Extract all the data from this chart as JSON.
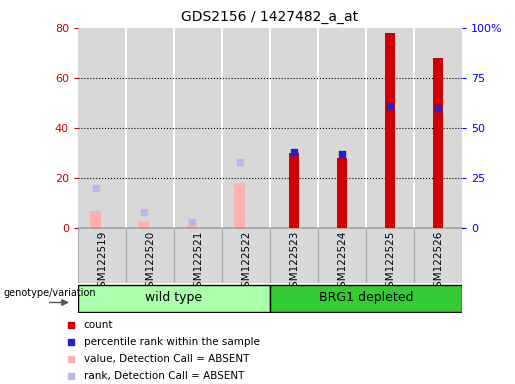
{
  "title": "GDS2156 / 1427482_a_at",
  "samples": [
    "GSM122519",
    "GSM122520",
    "GSM122521",
    "GSM122522",
    "GSM122523",
    "GSM122524",
    "GSM122525",
    "GSM122526"
  ],
  "count": [
    0,
    0,
    0,
    0,
    30,
    28,
    78,
    68
  ],
  "percentile_rank": [
    0,
    0,
    0,
    0,
    38,
    37,
    61,
    60
  ],
  "absent_value": [
    7,
    3,
    1,
    18,
    0,
    0,
    0,
    0
  ],
  "absent_rank": [
    20,
    8,
    3,
    33,
    0,
    0,
    0,
    0
  ],
  "left_ylim": [
    0,
    80
  ],
  "right_ylim": [
    0,
    100
  ],
  "left_yticks": [
    0,
    20,
    40,
    60,
    80
  ],
  "right_yticks": [
    0,
    25,
    50,
    75,
    100
  ],
  "right_yticklabels": [
    "0",
    "25",
    "50",
    "75",
    "100%"
  ],
  "count_color": "#cc0000",
  "rank_color": "#2222cc",
  "absent_value_color": "#ffb0b0",
  "absent_rank_color": "#b8b8ee",
  "bar_width": 0.22,
  "bg_color": "#d8d8d8",
  "wt_group_color": "#aaffaa",
  "brgd_group_color": "#33cc33",
  "wt_label": "wild type",
  "brgd_label": "BRG1 depleted",
  "group_label": "genotype/variation",
  "legend_items": [
    [
      "#cc0000",
      "count"
    ],
    [
      "#2222cc",
      "percentile rank within the sample"
    ],
    [
      "#ffb0b0",
      "value, Detection Call = ABSENT"
    ],
    [
      "#b8b8ee",
      "rank, Detection Call = ABSENT"
    ]
  ]
}
